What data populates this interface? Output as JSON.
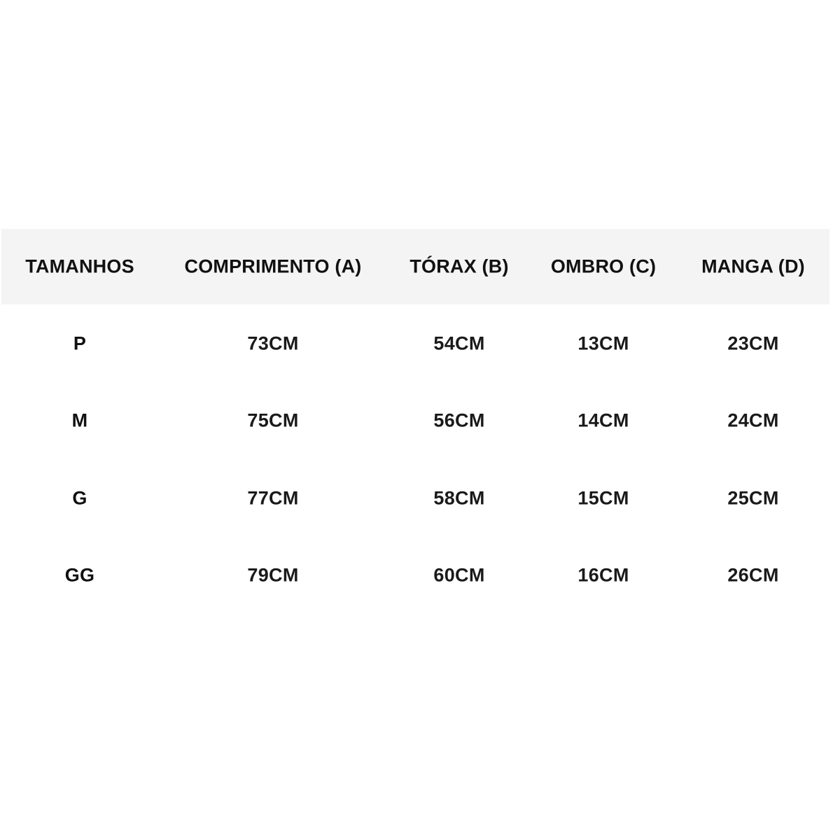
{
  "table": {
    "header_bg": "#f4f4f4",
    "headers": [
      "TAMANHOS",
      "COMPRIMENTO (A)",
      "TÓRAX (B)",
      "OMBRO (C)",
      "MANGA (D)"
    ],
    "rows": [
      [
        "P",
        "73CM",
        "54CM",
        "13CM",
        "23CM"
      ],
      [
        "M",
        "75CM",
        "56CM",
        "14CM",
        "24CM"
      ],
      [
        "G",
        "77CM",
        "58CM",
        "15CM",
        "25CM"
      ],
      [
        "GG",
        "79CM",
        "60CM",
        "16CM",
        "26CM"
      ]
    ]
  }
}
